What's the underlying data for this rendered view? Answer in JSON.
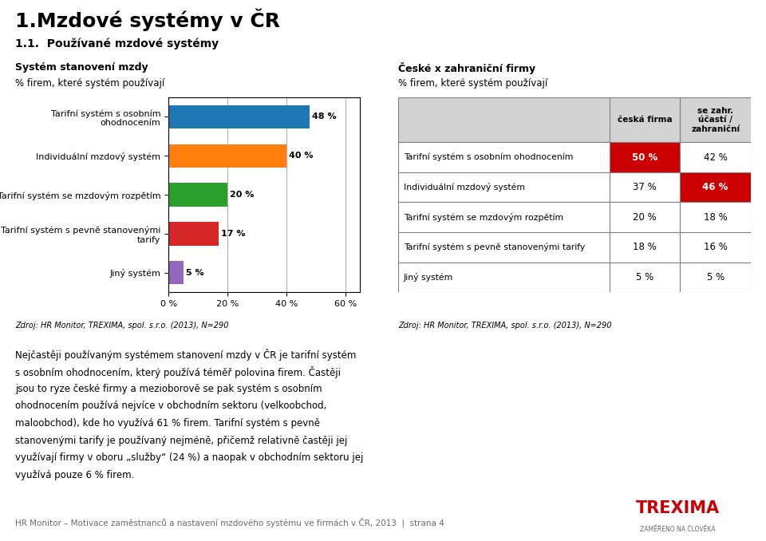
{
  "title": "1.Mzdové systémy v ČR",
  "subtitle": "1.1.  Používané mzdové systémy",
  "annotations": [
    "Nejčastěji používaným systémem stanovení mzdy v ČR je tarifní systém",
    "s osobním ohodnocením, který používá téměř polovina firem. Častěji",
    "jsou to ryze české firmy a mezioborově se pak systém s osobním",
    "ohodnocením používá nejvíce v obchodním sektoru (velkoobchod,",
    "maloobchod), kde ho využívá 61 % firem. Tarifní systém s pevně",
    "stanovenými tarify je používaný nejméně, přičemž relativně častěji jej",
    "využívají firmy v oboru „služby“ (24 %) a naopak v obchodním sektoru jej",
    "využívá pouze 6 % firem."
  ],
  "footer": "HR Monitor – Motivace zaměstnanců a nastavení mzdového systému ve firmách v ČR, 2013  |  strana 4",
  "logo": [
    "TREXIMA",
    "ZAMĚŘENO NA ČLOVĚKA"
  ],
  "logo_color": "#CC0000",
  "chart_data": [
    {
      "type": "bar",
      "orientation": "horizontal",
      "title": "Systém stanovení mzdy",
      "subtitle": "% firem, které systém používají",
      "categories": [
        "Tarifní systém s osobním\nohodnocením",
        "Individuální mzdový systém",
        "Tarifní systém se mzdovým rozpětím",
        "Tarifní systém s pevně stanovenými\ntarify",
        "Jiný systém"
      ],
      "values": [
        48,
        40,
        20,
        17,
        5
      ],
      "value_labels": [
        "48 %",
        "40 %",
        "20 %",
        "17 %",
        "5 %"
      ],
      "data_labels": true,
      "colors": [
        "#1f77b4",
        "#ff7f0e",
        "#2ca02c",
        "#d62728",
        "#9467bd"
      ],
      "xlim": [
        0,
        65
      ],
      "xticks": [
        {
          "value": 0,
          "label": "0 %"
        },
        {
          "value": 20,
          "label": "20 %"
        },
        {
          "value": 40,
          "label": "40 %"
        },
        {
          "value": 60,
          "label": "60 %"
        }
      ],
      "grid": true,
      "annotations": [
        "Zdroj: HR Monitor, TREXIMA, spol. s.r.o. (2013), N=290"
      ]
    },
    {
      "type": "table",
      "title": "České x zahraniční firmy",
      "subtitle": "% firem, které systém používají",
      "categories": [
        "Tarifní systém s osobním ohodnocením",
        "Individuální mzdový systém",
        "Tarifní systém se mzdovým rozpětím",
        "Tarifní systém s pevně stanovenými tarify",
        "Jiný systém"
      ],
      "series": [
        {
          "name": "česká firma",
          "values": [
            50,
            37,
            20,
            18,
            5
          ],
          "value_labels": [
            "50 %",
            "37 %",
            "20 %",
            "18 %",
            "5 %"
          ],
          "colors": [
            "#CC0000",
            "#FFFFFF",
            "#FFFFFF",
            "#FFFFFF",
            "#FFFFFF"
          ]
        },
        {
          "name": "se zahr.\núčastí /\nzahraniční",
          "values": [
            42,
            46,
            18,
            16,
            5
          ],
          "value_labels": [
            "42 %",
            "46 %",
            "18 %",
            "16 %",
            "5 %"
          ],
          "colors": [
            "#FFFFFF",
            "#CC0000",
            "#FFFFFF",
            "#FFFFFF",
            "#FFFFFF"
          ]
        }
      ],
      "data_labels": true,
      "annotations": [
        "Zdroj: HR Monitor, TREXIMA, spol. s.r.o. (2013), N=290"
      ]
    }
  ]
}
